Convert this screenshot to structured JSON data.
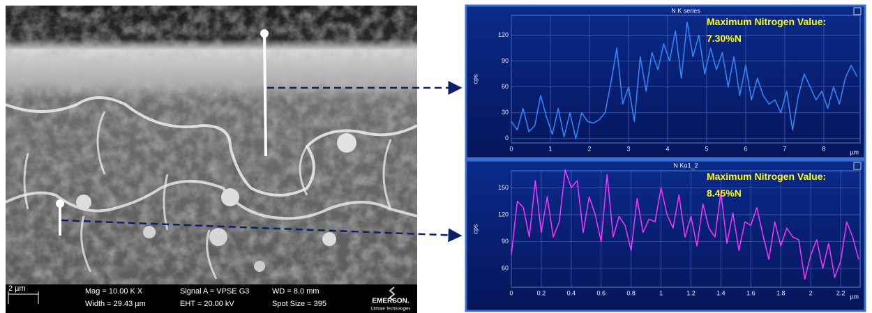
{
  "sem_image": {
    "scale_bar": "2 µm",
    "mag": "Mag = 10.00 K X",
    "width": "Width = 29.43 µm",
    "signal": "Signal A = VPSE G3",
    "eht": "EHT = 20.00 kV",
    "wd": "WD = 8.0 mm",
    "spot": "Spot Size = 395",
    "logo": "EMERSON.",
    "logo_sub": "Climate Technologies"
  },
  "chart_data": [
    {
      "type": "line",
      "title": "N K series",
      "y_label": "cps",
      "x_label": "µm",
      "annotations": [
        "Maximum Nitrogen Value:",
        "7.30%N"
      ],
      "grid": true,
      "xlim": [
        0,
        8.93
      ],
      "xticks": [
        0,
        1,
        2,
        3,
        4,
        5,
        6,
        7,
        8
      ],
      "ylim": [
        -5,
        143
      ],
      "yticks": [
        0,
        30,
        60,
        90,
        120
      ],
      "x": [
        0,
        0.15,
        0.3,
        0.45,
        0.6,
        0.75,
        0.9,
        1.05,
        1.2,
        1.35,
        1.5,
        1.65,
        1.8,
        1.95,
        2.1,
        2.25,
        2.4,
        2.55,
        2.7,
        2.85,
        3,
        3.15,
        3.3,
        3.45,
        3.6,
        3.75,
        3.9,
        4.05,
        4.2,
        4.35,
        4.5,
        4.65,
        4.8,
        4.95,
        5.1,
        5.25,
        5.4,
        5.55,
        5.7,
        5.85,
        6,
        6.15,
        6.3,
        6.45,
        6.6,
        6.75,
        6.9,
        7.05,
        7.2,
        7.35,
        7.5,
        7.65,
        7.8,
        7.95,
        8.1,
        8.25,
        8.4,
        8.55,
        8.7,
        8.85
      ],
      "series": [
        {
          "color": "#2f8cff",
          "values": [
            20,
            10,
            35,
            8,
            15,
            50,
            25,
            5,
            35,
            2,
            30,
            0,
            30,
            20,
            18,
            22,
            30,
            65,
            105,
            40,
            60,
            20,
            95,
            55,
            100,
            80,
            110,
            90,
            125,
            70,
            135,
            95,
            120,
            75,
            105,
            80,
            100,
            60,
            95,
            50,
            85,
            45,
            70,
            50,
            40,
            45,
            30,
            55,
            10,
            50,
            75,
            60,
            45,
            55,
            35,
            60,
            40,
            70,
            85,
            72
          ]
        }
      ]
    },
    {
      "type": "line",
      "title": "N Kα1_2",
      "y_label": "cps",
      "x_label": "µm",
      "annotations": [
        "Maximum Nitrogen Value:",
        "8.45%N"
      ],
      "grid": true,
      "xlim": [
        0,
        2.33
      ],
      "xticks": [
        0,
        0.2,
        0.4,
        0.6,
        0.8,
        1,
        1.2,
        1.4,
        1.6,
        1.8,
        2,
        2.2
      ],
      "ylim": [
        39,
        169
      ],
      "yticks": [
        60,
        90,
        120,
        150
      ],
      "x": [
        0,
        0.04,
        0.08,
        0.12,
        0.16,
        0.2,
        0.24,
        0.28,
        0.32,
        0.36,
        0.4,
        0.44,
        0.48,
        0.52,
        0.56,
        0.6,
        0.64,
        0.68,
        0.72,
        0.76,
        0.8,
        0.84,
        0.88,
        0.92,
        0.96,
        1,
        1.04,
        1.08,
        1.12,
        1.16,
        1.2,
        1.24,
        1.28,
        1.32,
        1.36,
        1.4,
        1.44,
        1.48,
        1.52,
        1.56,
        1.6,
        1.64,
        1.68,
        1.72,
        1.76,
        1.8,
        1.84,
        1.88,
        1.92,
        1.96,
        2,
        2.04,
        2.08,
        2.12,
        2.16,
        2.2,
        2.24,
        2.28,
        2.32
      ],
      "series": [
        {
          "color": "#ff33ff",
          "values": [
            75,
            135,
            128,
            95,
            158,
            100,
            140,
            95,
            112,
            170,
            150,
            158,
            100,
            140,
            120,
            90,
            165,
            95,
            118,
            108,
            80,
            138,
            100,
            115,
            112,
            150,
            120,
            105,
            142,
            95,
            118,
            85,
            132,
            105,
            95,
            145,
            88,
            122,
            80,
            112,
            108,
            128,
            98,
            70,
            112,
            85,
            105,
            95,
            92,
            48,
            75,
            92,
            60,
            88,
            50,
            68,
            112,
            95,
            70
          ]
        }
      ]
    }
  ]
}
